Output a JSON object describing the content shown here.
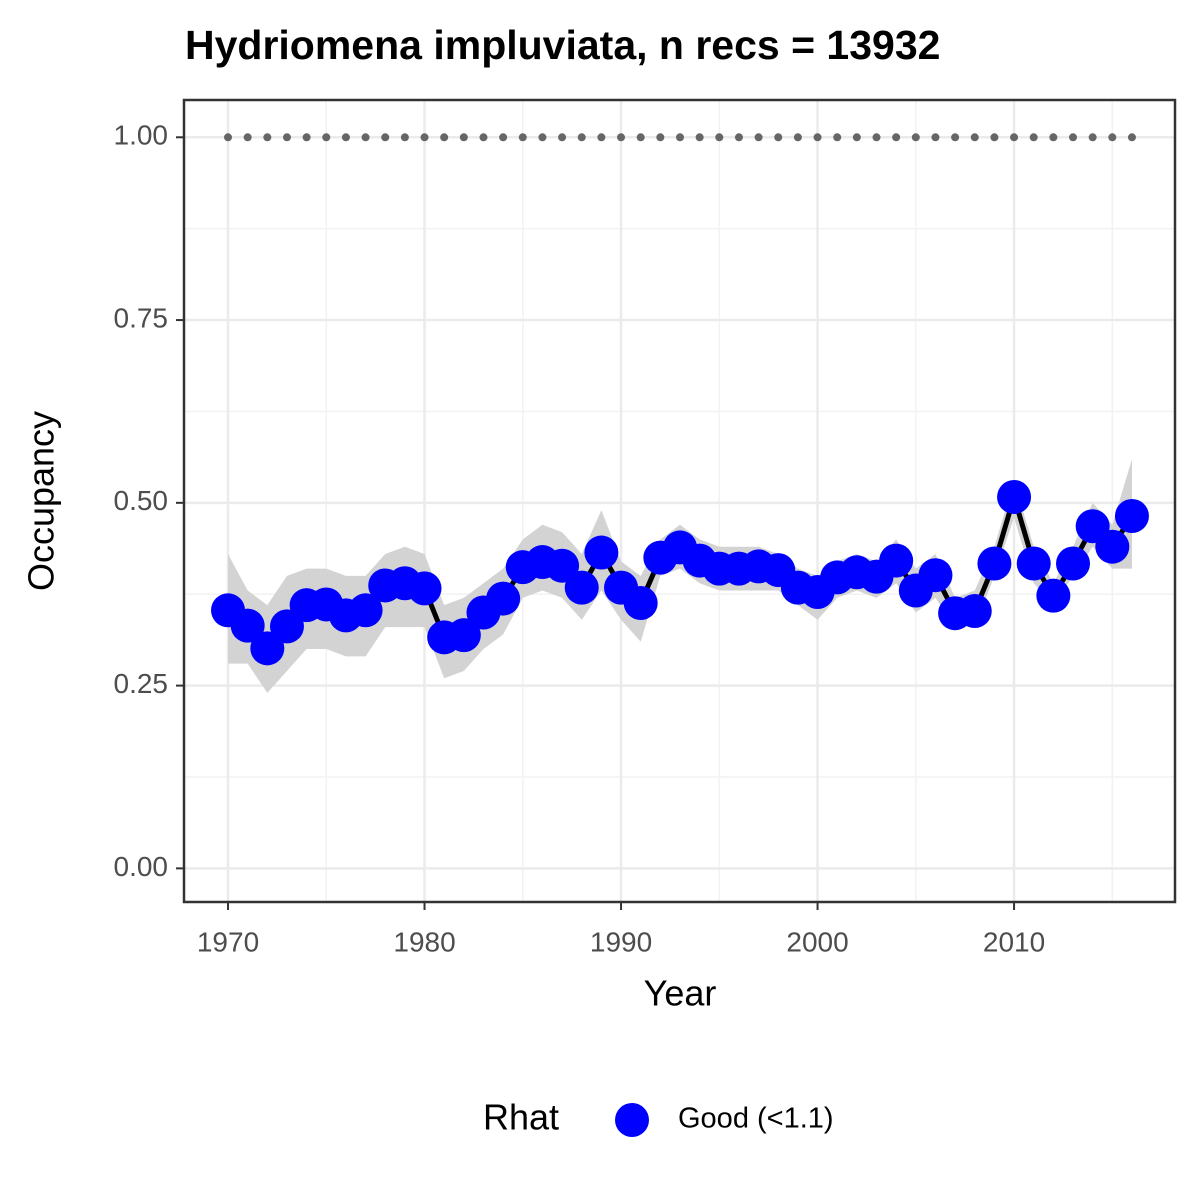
{
  "chart_data": {
    "type": "line",
    "title": "Hydriomena impluviata, n recs = 13932",
    "x_label": "Year",
    "y_label": "Occupancy",
    "legend_title": "Rhat",
    "x": [
      1970,
      1971,
      1972,
      1973,
      1974,
      1975,
      1976,
      1977,
      1978,
      1979,
      1980,
      1981,
      1982,
      1983,
      1984,
      1985,
      1986,
      1987,
      1988,
      1989,
      1990,
      1991,
      1992,
      1993,
      1994,
      1995,
      1996,
      1997,
      1998,
      1999,
      2000,
      2001,
      2002,
      2003,
      2004,
      2005,
      2006,
      2007,
      2008,
      2009,
      2010,
      2011,
      2012,
      2013,
      2014,
      2015,
      2016
    ],
    "series": [
      {
        "name": "Good (<1.1)",
        "color": "#0000ff",
        "line_color": "#000000",
        "values": [
          0.353,
          0.332,
          0.301,
          0.331,
          0.36,
          0.361,
          0.346,
          0.353,
          0.387,
          0.39,
          0.383,
          0.316,
          0.319,
          0.35,
          0.369,
          0.412,
          0.419,
          0.414,
          0.384,
          0.432,
          0.384,
          0.363,
          0.425,
          0.439,
          0.421,
          0.41,
          0.41,
          0.413,
          0.408,
          0.384,
          0.378,
          0.398,
          0.405,
          0.399,
          0.421,
          0.38,
          0.401,
          0.349,
          0.352,
          0.417,
          0.508,
          0.417,
          0.373,
          0.417,
          0.468,
          0.44,
          0.482
        ]
      },
      {
        "color": "#666666",
        "values": [
          1,
          1,
          1,
          1,
          1,
          1,
          1,
          1,
          1,
          1,
          1,
          1,
          1,
          1,
          1,
          1,
          1,
          1,
          1,
          1,
          1,
          1,
          1,
          1,
          1,
          1,
          1,
          1,
          1,
          1,
          1,
          1,
          1,
          1,
          1,
          1,
          1,
          1,
          1,
          1,
          1,
          1,
          1,
          1,
          1,
          1,
          1
        ]
      }
    ],
    "ribbon": {
      "color": "#d3d3d3",
      "upper": [
        0.43,
        0.38,
        0.36,
        0.4,
        0.41,
        0.41,
        0.4,
        0.4,
        0.43,
        0.44,
        0.43,
        0.36,
        0.37,
        0.39,
        0.41,
        0.45,
        0.47,
        0.46,
        0.43,
        0.49,
        0.42,
        0.4,
        0.45,
        0.47,
        0.45,
        0.44,
        0.44,
        0.44,
        0.43,
        0.41,
        0.4,
        0.42,
        0.43,
        0.42,
        0.45,
        0.41,
        0.43,
        0.37,
        0.38,
        0.44,
        0.53,
        0.44,
        0.39,
        0.44,
        0.5,
        0.47,
        0.56
      ],
      "lower": [
        0.28,
        0.28,
        0.24,
        0.27,
        0.3,
        0.3,
        0.29,
        0.29,
        0.33,
        0.33,
        0.33,
        0.26,
        0.27,
        0.3,
        0.32,
        0.37,
        0.38,
        0.37,
        0.34,
        0.38,
        0.34,
        0.31,
        0.4,
        0.41,
        0.39,
        0.38,
        0.38,
        0.38,
        0.38,
        0.36,
        0.34,
        0.37,
        0.38,
        0.37,
        0.39,
        0.35,
        0.37,
        0.33,
        0.33,
        0.4,
        0.48,
        0.39,
        0.36,
        0.4,
        0.44,
        0.41,
        0.41
      ]
    },
    "xlim": [
      1967.76,
      2018.19
    ],
    "ylim": [
      -0.046,
      1.051
    ],
    "xticks": [
      1970,
      1980,
      1990,
      2000,
      2010
    ],
    "yticks": [
      {
        "value": 0,
        "label": "0.00"
      },
      {
        "value": 0.25,
        "label": "0.25"
      },
      {
        "value": 0.5,
        "label": "0.50"
      },
      {
        "value": 0.75,
        "label": "0.75"
      },
      {
        "value": 1,
        "label": "1.00"
      }
    ],
    "grid": true,
    "legend_position": "bottom"
  }
}
